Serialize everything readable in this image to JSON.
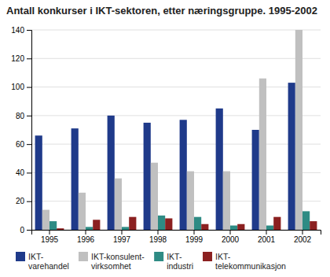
{
  "chart_data": {
    "type": "bar",
    "title": "Antall konkurser i IKT-sektoren, etter næringsgruppe. 1995-2002",
    "categories": [
      "1995",
      "1996",
      "1997",
      "1998",
      "1999",
      "2000",
      "2001",
      "2002"
    ],
    "series": [
      {
        "name": "IKT-\nvarehandel",
        "color": "#1f3a8a",
        "values": [
          66,
          71,
          80,
          75,
          77,
          85,
          70,
          103
        ]
      },
      {
        "name": "IKT-konsulent-\nvirksomhet",
        "color": "#c0c0c0",
        "values": [
          14,
          26,
          36,
          47,
          41,
          41,
          106,
          140
        ]
      },
      {
        "name": "IKT-\nindustri",
        "color": "#2e8b84",
        "values": [
          6,
          2,
          2,
          10,
          9,
          3,
          3,
          13
        ]
      },
      {
        "name": "IKT-\ntelekommunikasjon",
        "color": "#8b2020",
        "values": [
          1,
          7,
          9,
          8,
          4,
          4,
          9,
          6
        ]
      }
    ],
    "ylim": [
      0,
      140
    ],
    "yticks": [
      0,
      20,
      40,
      60,
      80,
      100,
      120,
      140
    ],
    "grid": true,
    "legend": "bottom"
  }
}
